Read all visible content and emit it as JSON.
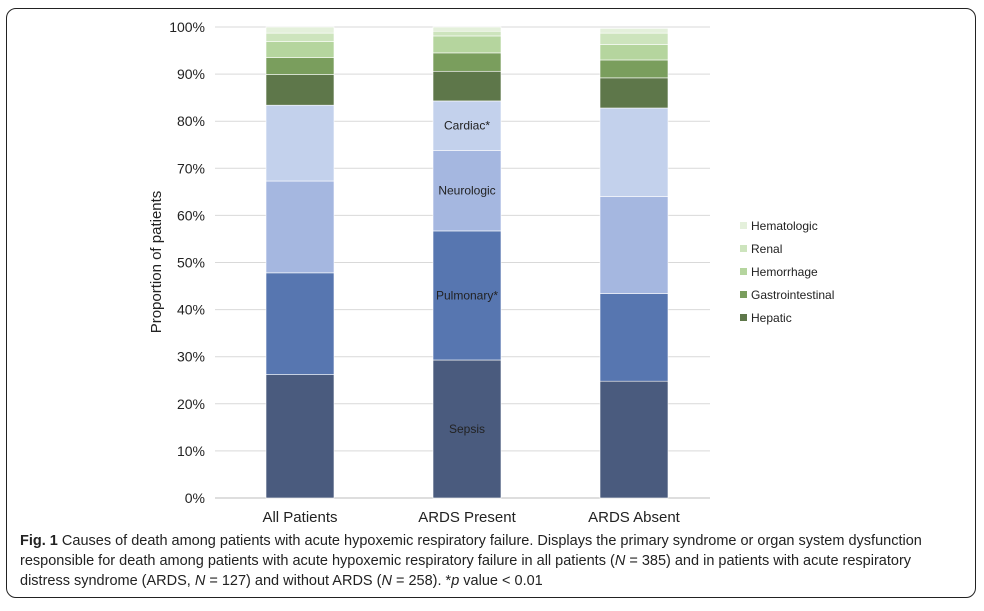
{
  "chart_data": {
    "type": "bar",
    "stacked": true,
    "ylabel": "Proportion of patients",
    "ylim": [
      0,
      100
    ],
    "yticks": [
      "0%",
      "10%",
      "20%",
      "30%",
      "40%",
      "50%",
      "60%",
      "70%",
      "80%",
      "90%",
      "100%"
    ],
    "categories": [
      "All Patients",
      "ARDS Present",
      "ARDS Absent"
    ],
    "series": [
      {
        "name": "Sepsis",
        "color": "#4a5b7e",
        "values": [
          26.2,
          29.3,
          24.8
        ]
      },
      {
        "name": "Pulmonary*",
        "color": "#5776b0",
        "values": [
          21.6,
          27.4,
          18.6
        ]
      },
      {
        "name": "Neurologic",
        "color": "#a5b7e0",
        "values": [
          19.5,
          17.1,
          20.6
        ]
      },
      {
        "name": "Cardiac*",
        "color": "#c3d1ec",
        "values": [
          16.1,
          10.5,
          18.8
        ]
      },
      {
        "name": "Hepatic",
        "color": "#5e774a",
        "values": [
          6.5,
          6.3,
          6.4
        ]
      },
      {
        "name": "Gastrointestinal",
        "color": "#7a9e5d",
        "values": [
          3.6,
          3.9,
          3.8
        ]
      },
      {
        "name": "Hemorrhage",
        "color": "#b5d59e",
        "values": [
          3.4,
          3.6,
          3.3
        ]
      },
      {
        "name": "Renal",
        "color": "#cde4bd",
        "values": [
          1.8,
          1.0,
          2.4
        ]
      },
      {
        "name": "Hematologic",
        "color": "#e4f0db",
        "values": [
          1.3,
          0.9,
          1.0
        ]
      }
    ],
    "inline_labels": [
      {
        "category": "ARDS Present",
        "series": "Sepsis",
        "text": "Sepsis"
      },
      {
        "category": "ARDS Present",
        "series": "Pulmonary*",
        "text": "Pulmonary*"
      },
      {
        "category": "ARDS Present",
        "series": "Neurologic",
        "text": "Neurologic"
      },
      {
        "category": "ARDS Present",
        "series": "Cardiac*",
        "text": "Cardiac*"
      }
    ],
    "legend": {
      "placement": "right",
      "entries": [
        {
          "label": "Hematologic",
          "color": "#e4f0db"
        },
        {
          "label": "Renal",
          "color": "#cde4bd"
        },
        {
          "label": "Hemorrhage",
          "color": "#b5d59e"
        },
        {
          "label": "Gastrointestinal",
          "color": "#7a9e5d"
        },
        {
          "label": "Hepatic",
          "color": "#5e774a"
        }
      ]
    },
    "grid": true
  },
  "caption": {
    "fig_label": "Fig. 1",
    "text_1": " Causes of death among patients with acute hypoxemic respiratory failure. Displays the primary syndrome or organ system dysfunction responsible for death among patients with acute hypoxemic respiratory failure in all patients (",
    "n1_var": "N",
    "n1_val": " = 385) and in patients with acute respiratory distress syndrome (ARDS, ",
    "n2_var": "N",
    "n2_val": " = 127) and without ARDS (",
    "n3_var": "N",
    "n3_val": " = 258). *",
    "p_var": "p",
    "p_text": " value < 0.01"
  }
}
